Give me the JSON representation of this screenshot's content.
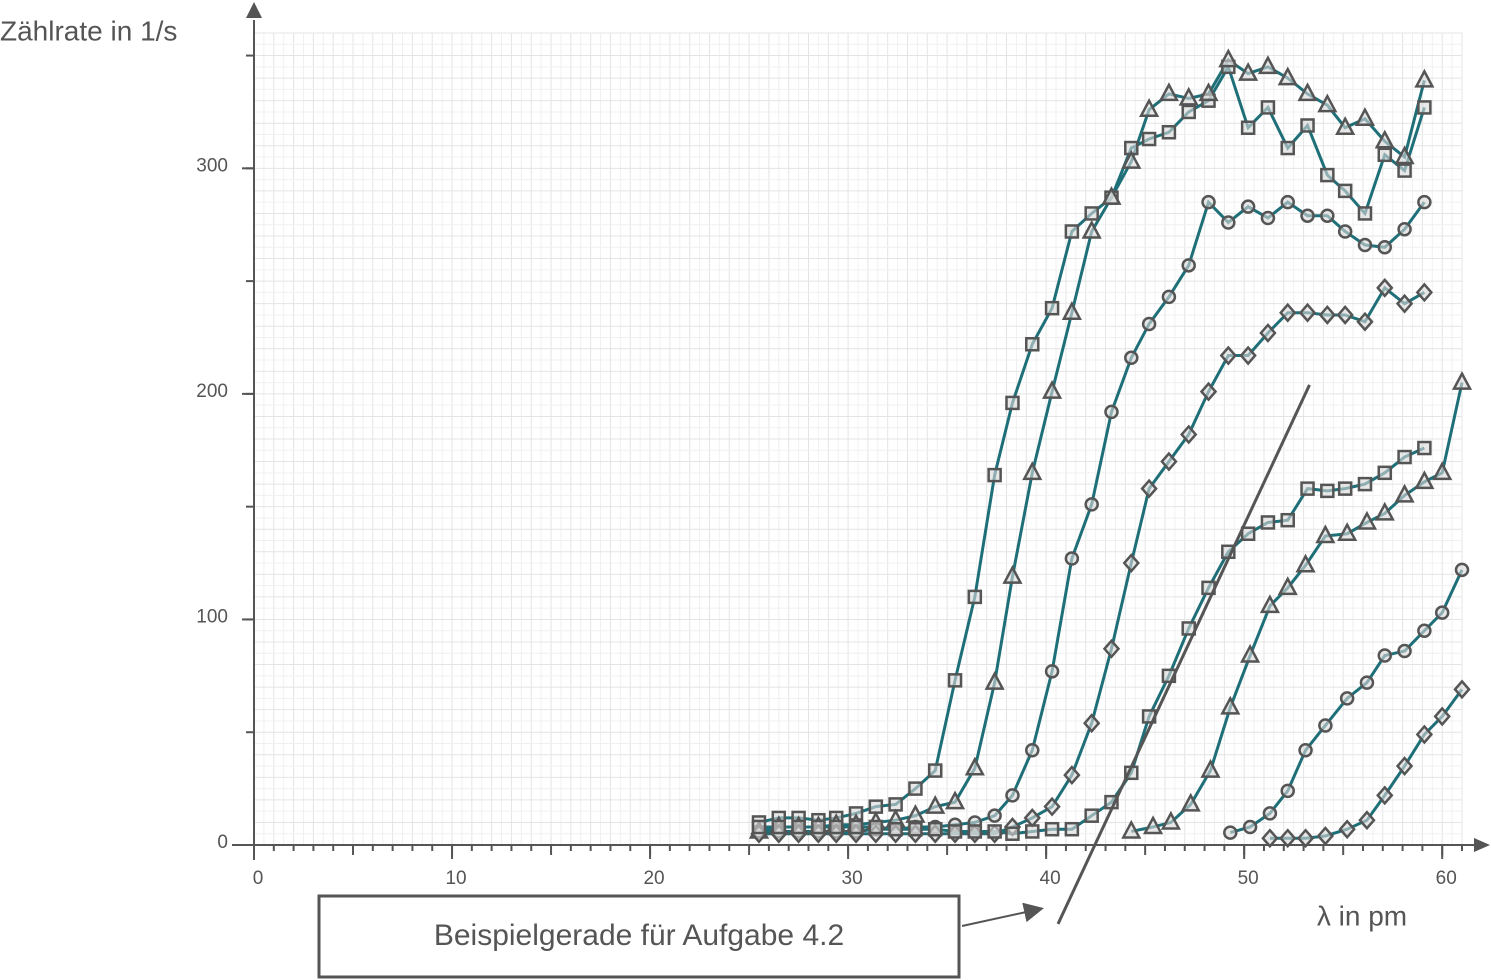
{
  "chart_data": {
    "type": "line",
    "y_label": "Zählrate in 1/s",
    "x_label": "λ in pm",
    "xlim": [
      0,
      61
    ],
    "ylim": [
      0,
      360
    ],
    "xticks": [
      0,
      10,
      20,
      30,
      40,
      50,
      60
    ],
    "yticks": [
      0,
      100,
      200,
      300
    ],
    "grid": true,
    "line_color": "#1f6f78",
    "marker_color": "#555555",
    "series": [
      {
        "marker": "square",
        "x": [
          25.5,
          26.5,
          27.5,
          28.5,
          29.4,
          30.4,
          31.4,
          32.4,
          33.4,
          34.4,
          35.4,
          36.4,
          37.4,
          38.3,
          39.3,
          40.3,
          41.3,
          42.3,
          43.3,
          44.3,
          45.2,
          46.2,
          47.2,
          48.2,
          49.2,
          50.2,
          51.2,
          52.2,
          53.2,
          54.2,
          55.1,
          56.1,
          57.1,
          58.1,
          59.1
        ],
        "values": [
          10,
          12,
          12,
          11,
          12,
          14,
          17,
          18,
          25,
          33,
          73,
          110,
          164,
          196,
          222,
          238,
          272,
          280,
          287,
          309,
          313,
          316,
          325,
          330,
          345,
          318,
          327,
          309,
          319,
          297,
          290,
          280,
          306,
          299,
          327
        ]
      },
      {
        "marker": "triangle",
        "x": [
          25.5,
          26.5,
          27.5,
          28.5,
          29.4,
          30.4,
          31.4,
          32.4,
          33.4,
          34.4,
          35.4,
          36.4,
          37.4,
          38.3,
          39.3,
          40.3,
          41.3,
          42.3,
          43.3,
          44.3,
          45.2,
          46.2,
          47.2,
          48.2,
          49.2,
          50.2,
          51.2,
          52.2,
          53.2,
          54.2,
          55.1,
          56.1,
          57.1,
          58.1,
          59.1
        ],
        "values": [
          6,
          8,
          8,
          8,
          9,
          9,
          10,
          11,
          13,
          17,
          19,
          34,
          72,
          119,
          165,
          201,
          236,
          272,
          287,
          303,
          326,
          333,
          331,
          333,
          348,
          342,
          345,
          340,
          333,
          328,
          318,
          322,
          312,
          305,
          339
        ]
      },
      {
        "marker": "circle",
        "x": [
          25.5,
          26.5,
          27.5,
          28.5,
          29.4,
          30.4,
          31.4,
          32.4,
          33.4,
          34.4,
          35.4,
          36.4,
          37.4,
          38.3,
          39.3,
          40.3,
          41.3,
          42.3,
          43.3,
          44.3,
          45.2,
          46.2,
          47.2,
          48.2,
          49.2,
          50.2,
          51.2,
          52.2,
          53.2,
          54.2,
          55.1,
          56.1,
          57.1,
          58.1,
          59.1
        ],
        "values": [
          6,
          6,
          6,
          6,
          6,
          6,
          7,
          7,
          8,
          8,
          9,
          10,
          13,
          22,
          42,
          77,
          127,
          151,
          192,
          216,
          231,
          243,
          257,
          285,
          276,
          283,
          278,
          285,
          279,
          279,
          272,
          266,
          265,
          273,
          285
        ]
      },
      {
        "marker": "diamond",
        "x": [
          25.5,
          26.5,
          27.5,
          28.5,
          29.4,
          30.4,
          31.4,
          32.4,
          33.4,
          34.4,
          35.4,
          36.4,
          37.4,
          38.3,
          39.3,
          40.3,
          41.3,
          42.3,
          43.3,
          44.3,
          45.2,
          46.2,
          47.2,
          48.2,
          49.2,
          50.2,
          51.2,
          52.2,
          53.2,
          54.2,
          55.1,
          56.1,
          57.1,
          58.1,
          59.1
        ],
        "values": [
          5,
          5,
          5,
          5,
          5,
          5,
          5,
          5,
          5,
          5,
          5,
          5,
          5,
          8,
          12,
          17,
          31,
          54,
          87,
          125,
          158,
          170,
          182,
          201,
          217,
          217,
          227,
          236,
          236,
          235,
          235,
          232,
          247,
          240,
          245
        ]
      },
      {
        "marker": "square",
        "x": [
          25.5,
          26.5,
          27.5,
          28.5,
          29.4,
          30.4,
          31.4,
          32.4,
          33.4,
          34.4,
          35.4,
          36.4,
          37.4,
          38.3,
          39.3,
          40.3,
          41.3,
          42.3,
          43.3,
          44.3,
          45.2,
          46.2,
          47.2,
          48.2,
          49.2,
          50.2,
          51.2,
          52.2,
          53.2,
          54.2,
          55.1,
          56.1,
          57.1,
          58.1,
          59.1
        ],
        "values": [
          8,
          8,
          8,
          8,
          8,
          8,
          8,
          7,
          7,
          7,
          6,
          6,
          6,
          5,
          6,
          7,
          7,
          13,
          19,
          32,
          57,
          75,
          96,
          114,
          130,
          138,
          143,
          144,
          158,
          157,
          158,
          160,
          165,
          172,
          176
        ]
      },
      {
        "marker": "triangle",
        "x": [
          44.3,
          45.4,
          46.3,
          47.3,
          48.3,
          49.3,
          50.3,
          51.3,
          52.2,
          53.1,
          54.1,
          55.2,
          56.2,
          57.1,
          58.1,
          59.1,
          60.0,
          61.0
        ],
        "values": [
          6,
          8,
          10,
          18,
          33,
          61,
          84,
          106,
          114,
          124,
          137,
          138,
          143,
          147,
          155,
          161,
          165,
          205
        ]
      },
      {
        "marker": "circle",
        "x": [
          49.3,
          50.3,
          51.3,
          52.2,
          53.1,
          54.1,
          55.2,
          56.2,
          57.1,
          58.1,
          59.1,
          60.0,
          61.0
        ],
        "values": [
          5.5,
          8,
          14,
          24,
          42,
          53,
          65,
          72,
          84,
          86,
          95,
          103,
          122
        ]
      },
      {
        "marker": "diamond",
        "x": [
          51.3,
          52.2,
          53.1,
          54.1,
          55.2,
          56.2,
          57.1,
          58.1,
          59.1,
          60.0,
          61.0
        ],
        "values": [
          3,
          3,
          3,
          4,
          7,
          11,
          22,
          35,
          49,
          57,
          69
        ]
      }
    ],
    "example_line": {
      "label": "Beispielgerade für Aufgabe 4.2",
      "x": [
        40.6,
        53.3
      ],
      "y": [
        -35,
        204
      ]
    }
  }
}
